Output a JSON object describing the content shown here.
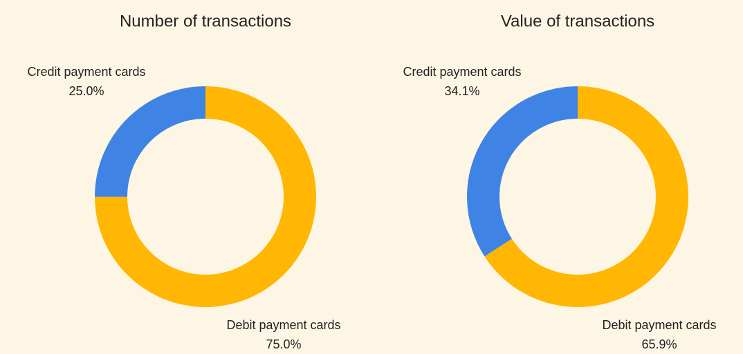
{
  "chart_data": [
    {
      "type": "pie",
      "donut": true,
      "title": "Number of transactions",
      "categories": [
        "Credit payment cards",
        "Debit payment cards"
      ],
      "values": [
        25.0,
        75.0
      ],
      "value_labels": [
        "25.0%",
        "75.0%"
      ],
      "colors": [
        "#3f84e5",
        "#ffb703"
      ]
    },
    {
      "type": "pie",
      "donut": true,
      "title": "Value of transactions",
      "categories": [
        "Credit payment cards",
        "Debit payment cards"
      ],
      "values": [
        34.1,
        65.9
      ],
      "value_labels": [
        "34.1%",
        "65.9%"
      ],
      "colors": [
        "#3f84e5",
        "#ffb703"
      ]
    }
  ]
}
